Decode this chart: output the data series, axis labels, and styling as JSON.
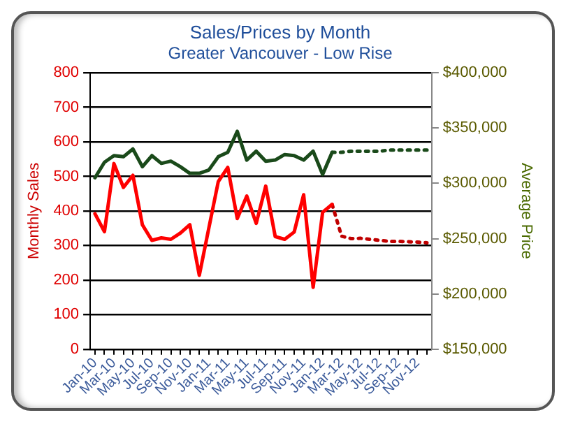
{
  "chart_data": {
    "type": "line",
    "title": "Sales/Prices by Month",
    "subtitle": "Greater Vancouver - Low Rise",
    "ylabel": "Monthly Sales",
    "y2label": "Average Price",
    "categories": [
      "Jan-10",
      null,
      "Mar-10",
      null,
      "May-10",
      null,
      "Jul-10",
      null,
      "Sep-10",
      null,
      "Nov-10",
      null,
      "Jan-11",
      null,
      "Mar-11",
      null,
      "May-11",
      null,
      "Jul-11",
      null,
      "Sep-11",
      null,
      "Nov-11",
      null,
      "Jan-12",
      null,
      "Mar-12",
      null,
      "May-12",
      null,
      "Jul-12",
      null,
      "Sep-12",
      null,
      "Nov-12",
      null
    ],
    "series": [
      {
        "color": "#ff0000",
        "line_style": "solid",
        "values": [
          392,
          340,
          537,
          468,
          503,
          360,
          315,
          322,
          318,
          336,
          360,
          214,
          350,
          485,
          526,
          378,
          443,
          364,
          472,
          326,
          318,
          339,
          447,
          179,
          396,
          419,
          null,
          null,
          null,
          null,
          null,
          null,
          null,
          null,
          null,
          null
        ]
      },
      {
        "color": "#c00000",
        "line_style": "dotted",
        "values": [
          null,
          null,
          null,
          null,
          null,
          null,
          null,
          null,
          null,
          null,
          null,
          null,
          null,
          null,
          null,
          null,
          null,
          null,
          null,
          null,
          null,
          null,
          null,
          null,
          null,
          419,
          327,
          320,
          321,
          318,
          315,
          312,
          312,
          311,
          310,
          308
        ]
      },
      {
        "color": "#1a4a1a",
        "line_style": "solid",
        "axis": "y2",
        "values": [
          305000,
          319000,
          325000,
          324000,
          331000,
          315000,
          325000,
          318000,
          320000,
          315000,
          309000,
          309000,
          312000,
          324000,
          328000,
          347000,
          321000,
          329000,
          320000,
          321000,
          326000,
          325000,
          321000,
          329000,
          308000,
          328000,
          null,
          null,
          null,
          null,
          null,
          null,
          null,
          null,
          null,
          null
        ]
      },
      {
        "color": "#1a4a1a",
        "line_style": "dotted",
        "axis": "y2",
        "values": [
          null,
          null,
          null,
          null,
          null,
          null,
          null,
          null,
          null,
          null,
          null,
          null,
          null,
          null,
          null,
          null,
          null,
          null,
          null,
          null,
          null,
          null,
          null,
          null,
          null,
          328000,
          328000,
          329000,
          329000,
          329000,
          329000,
          330000,
          330000,
          330000,
          330000,
          330000
        ]
      }
    ],
    "ylim": [
      0,
      800
    ],
    "yticks": [
      0,
      100,
      200,
      300,
      400,
      500,
      600,
      700,
      800
    ],
    "y2lim": [
      150000,
      400000
    ],
    "y2ticks": [
      {
        "value": 150000,
        "label": "$150,000"
      },
      {
        "value": 200000,
        "label": "$200,000"
      },
      {
        "value": 250000,
        "label": "$250,000"
      },
      {
        "value": 300000,
        "label": "$300,000"
      },
      {
        "value": 350000,
        "label": "$350,000"
      },
      {
        "value": 400000,
        "label": "$400,000"
      }
    ],
    "grid": "y",
    "legend": false,
    "marker": "none"
  }
}
